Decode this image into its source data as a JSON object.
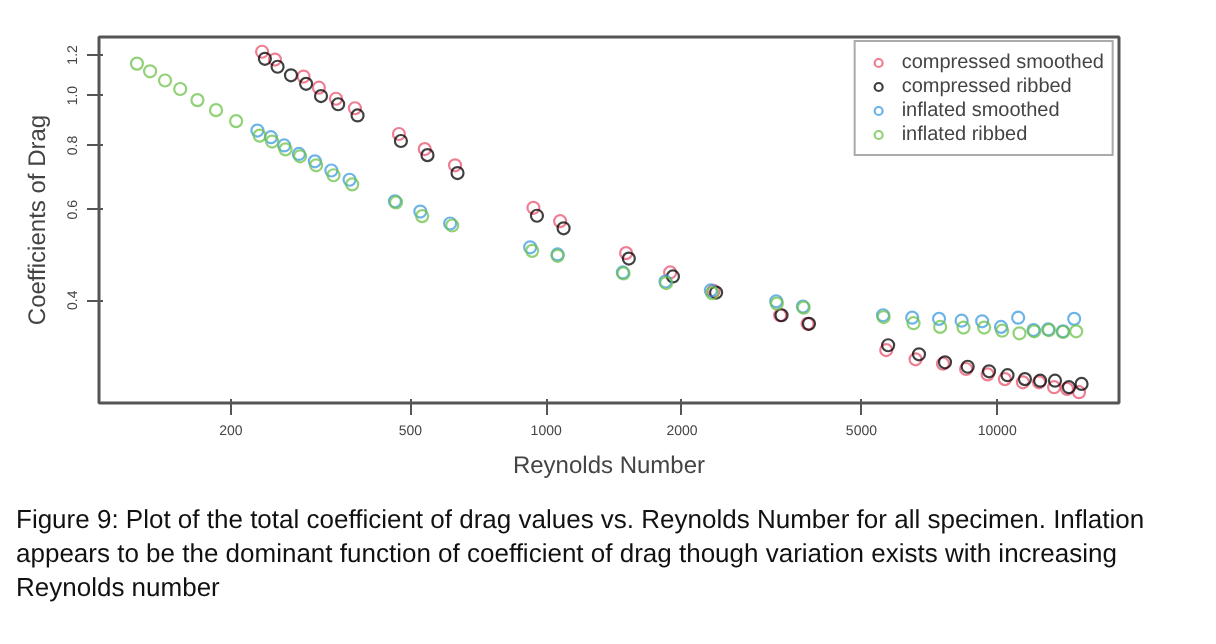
{
  "chart_data": {
    "type": "scatter",
    "xlabel": "Reynolds Number",
    "ylabel": "Coefficients of Drag",
    "log": "xy",
    "grid": false,
    "legend": "top right",
    "marker": "circle",
    "xlim": [
      102,
      18620
    ],
    "ylim": [
      0.2525,
      1.3
    ],
    "xticks": [
      200,
      500,
      1000,
      2000,
      5000,
      10000
    ],
    "yticks": [
      0.4,
      0.6,
      0.8,
      {
        "value": 1,
        "label": "1.0"
      },
      1.2
    ],
    "annotations": [
      "Figure 9: Plot of the total coefficient of drag values vs. Reynolds Number for all specimen. Inflation appears to be the dominant function of coefficient of drag though variation exists with increasing Reynolds number"
    ],
    "series": [
      {
        "name": "compressed smoothed",
        "color": "#e8536e",
        "x": [
          234.5,
          250.4,
          289.8,
          313.4,
          342,
          376.7,
          471.6,
          538,
          628,
          937,
          1074,
          1504,
          1883,
          2350,
          3302,
          3798,
          5674,
          6592,
          7580,
          8531,
          9522,
          10400,
          11400,
          12380,
          13370,
          14280,
          15180
        ],
        "values": [
          1.217,
          1.175,
          1.089,
          1.036,
          0.986,
          0.945,
          0.842,
          0.787,
          0.732,
          0.605,
          0.57,
          0.494,
          0.453,
          0.417,
          0.374,
          0.36,
          0.32,
          0.307,
          0.301,
          0.294,
          0.287,
          0.281,
          0.277,
          0.277,
          0.271,
          0.269,
          0.265
        ]
      },
      {
        "name": "compressed ribbed",
        "color": "#000000",
        "x": [
          237.9,
          253.8,
          271.8,
          293.6,
          316.8,
          345.8,
          381.8,
          476.4,
          545.6,
          636,
          954,
          1093,
          1525,
          1910,
          2381,
          3325,
          3825,
          5730,
          6707,
          7660,
          8600,
          9590,
          10540,
          11520,
          12450,
          13430,
          14420,
          15380
        ],
        "values": [
          1.179,
          1.138,
          1.095,
          1.054,
          0.998,
          0.962,
          0.915,
          0.816,
          0.766,
          0.707,
          0.584,
          0.552,
          0.482,
          0.445,
          0.414,
          0.374,
          0.36,
          0.327,
          0.314,
          0.303,
          0.297,
          0.291,
          0.286,
          0.281,
          0.279,
          0.279,
          0.271,
          0.275
        ]
      },
      {
        "name": "inflated smoothed",
        "color": "#3b9ae0",
        "x": [
          229,
          245.3,
          262.5,
          283,
          307,
          334,
          366.5,
          462,
          526,
          612.5,
          921.5,
          1060,
          1479,
          1839,
          2318,
          3236,
          3709,
          5583,
          6479,
          7430,
          8338,
          9260,
          10195,
          11128,
          12036,
          12971,
          13990,
          14812
        ],
        "values": [
          0.855,
          0.83,
          0.8,
          0.77,
          0.745,
          0.715,
          0.686,
          0.623,
          0.595,
          0.564,
          0.507,
          0.491,
          0.453,
          0.435,
          0.418,
          0.398,
          0.389,
          0.374,
          0.37,
          0.368,
          0.365,
          0.364,
          0.355,
          0.37,
          0.35,
          0.351,
          0.348,
          0.368
        ]
      },
      {
        "name": "inflated ribbed",
        "color": "#6cc24a",
        "x": [
          123.8,
          132.4,
          142.9,
          154.4,
          168.6,
          185.4,
          205.4,
          231.6,
          246.9,
          264.3,
          284.7,
          309,
          337.7,
          371.5,
          464.6,
          531,
          619,
          931,
          1060,
          1484,
          1845,
          2334,
          3247,
          3722,
          5599,
          6524,
          7472,
          8418,
          9355,
          10256,
          11205,
          12077,
          13023,
          13990,
          14964
        ],
        "values": [
          1.154,
          1.115,
          1.07,
          1.03,
          0.98,
          0.937,
          0.892,
          0.836,
          0.814,
          0.786,
          0.762,
          0.732,
          0.7,
          0.672,
          0.62,
          0.583,
          0.559,
          0.499,
          0.488,
          0.451,
          0.432,
          0.413,
          0.394,
          0.387,
          0.371,
          0.361,
          0.355,
          0.354,
          0.354,
          0.349,
          0.345,
          0.348,
          0.35,
          0.347,
          0.348
        ]
      }
    ]
  }
}
